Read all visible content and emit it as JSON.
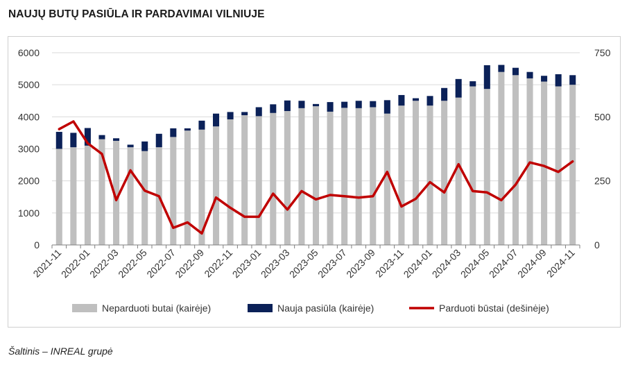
{
  "header": {
    "title": "NAUJŲ BUTŲ PASIŪLA IR PARDAVIMAI VILNIUJE"
  },
  "footer": {
    "source": "Šaltinis – INREAL grupė"
  },
  "colors": {
    "unsold": "#bfbfbf",
    "new_supply": "#0b2158",
    "sold": "#c00000"
  },
  "chart_data": {
    "type": "bar",
    "stacked": true,
    "title": "NAUJŲ BUTŲ PASIŪLA IR PARDAVIMAI VILNIUJE",
    "xlabel": "",
    "ylabel": "",
    "ylim_left": [
      0,
      6000
    ],
    "ylim_right": [
      0,
      750
    ],
    "yticks_left": [
      "0",
      "1000",
      "2000",
      "3000",
      "4000",
      "5000",
      "6000"
    ],
    "yticks_right": [
      "0",
      "250",
      "500",
      "750"
    ],
    "grid": true,
    "legend_position": "bottom",
    "categories": [
      "2021-11",
      "2021-12",
      "2022-01",
      "2022-02",
      "2022-03",
      "2022-04",
      "2022-05",
      "2022-06",
      "2022-07",
      "2022-08",
      "2022-09",
      "2022-10",
      "2022-11",
      "2022-12",
      "2023-01",
      "2023-02",
      "2023-03",
      "2023-04",
      "2023-05",
      "2023-06",
      "2023-07",
      "2023-08",
      "2023-09",
      "2023-10",
      "2023-11",
      "2023-12",
      "2024-01",
      "2024-02",
      "2024-03",
      "2024-04",
      "2024-05",
      "2024-06",
      "2024-07",
      "2024-08",
      "2024-09",
      "2024-10",
      "2024-11"
    ],
    "x_tick_labels": [
      "2021-11",
      "2022-01",
      "2022-03",
      "2022-05",
      "2022-07",
      "2022-09",
      "2022-11",
      "2023-01",
      "2023-03",
      "2023-05",
      "2023-07",
      "2023-09",
      "2023-11",
      "2024-01",
      "2024-03",
      "2024-05",
      "2024-07",
      "2024-09",
      "2024-11"
    ],
    "series": [
      {
        "name": "Neparduoti butai (kairėje)",
        "type": "bar",
        "axis": "left",
        "values": [
          3000,
          3050,
          3100,
          3300,
          3250,
          3050,
          2930,
          3050,
          3370,
          3570,
          3600,
          3700,
          3920,
          4050,
          4020,
          4120,
          4180,
          4270,
          4330,
          4160,
          4280,
          4270,
          4300,
          4100,
          4350,
          4500,
          4350,
          4500,
          4600,
          4950,
          4870,
          5400,
          5300,
          5200,
          5100,
          4950,
          5000
        ]
      },
      {
        "name": "Nauja pasiūla (kairėje)",
        "type": "bar",
        "axis": "left",
        "values": [
          530,
          450,
          550,
          130,
          80,
          80,
          300,
          420,
          270,
          70,
          280,
          400,
          230,
          100,
          280,
          270,
          330,
          230,
          70,
          300,
          190,
          230,
          190,
          420,
          330,
          80,
          300,
          400,
          580,
          160,
          740,
          220,
          230,
          200,
          180,
          380,
          300
        ]
      },
      {
        "name": "Parduoti būstai (dešinėje)",
        "type": "line",
        "axis": "right",
        "values": [
          452,
          482,
          397,
          355,
          175,
          291,
          212,
          190,
          67,
          88,
          45,
          185,
          145,
          110,
          110,
          200,
          138,
          210,
          178,
          195,
          190,
          185,
          190,
          285,
          150,
          180,
          245,
          205,
          315,
          210,
          205,
          175,
          235,
          322,
          308,
          285,
          326
        ]
      }
    ]
  }
}
